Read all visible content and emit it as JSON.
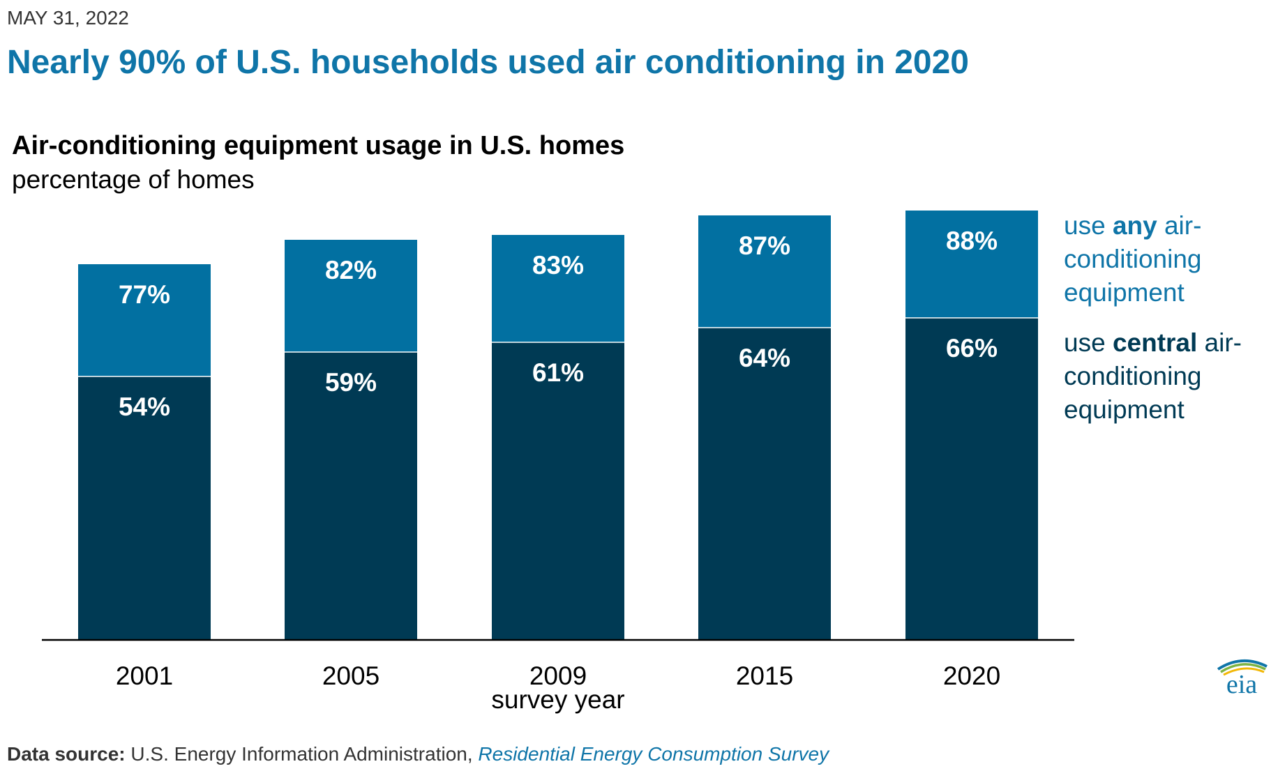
{
  "header": {
    "date": "MAY 31, 2022",
    "headline": "Nearly 90% of U.S. households used air conditioning in 2020"
  },
  "legend": {
    "any": {
      "prefix": "use ",
      "emphasis": "any",
      "suffix": " air-conditioning equipment"
    },
    "central": {
      "prefix": "use ",
      "emphasis": "central",
      "suffix": " air-conditioning equipment"
    }
  },
  "footer": {
    "source_label": "Data source:",
    "source_text": " U.S. Energy Information Administration, ",
    "source_link": "Residential Energy Consumption Survey",
    "logo_text": "eia"
  },
  "colors": {
    "headline": "#0F75A8",
    "any_ac": "#0270A1",
    "central_ac": "#003A54",
    "axis": "#000000"
  },
  "chart_data": {
    "type": "bar",
    "stacked": false,
    "overlapping": true,
    "title": "Air-conditioning equipment usage in U.S. homes",
    "subtitle": "percentage of homes",
    "xlabel": "survey year",
    "ylabel": "",
    "ylim": [
      0,
      100
    ],
    "grid": false,
    "categories": [
      "2001",
      "2005",
      "2009",
      "2015",
      "2020"
    ],
    "series": [
      {
        "name": "use any air-conditioning equipment",
        "key": "any",
        "values": [
          77,
          82,
          83,
          87,
          88
        ],
        "labels": [
          "77%",
          "82%",
          "83%",
          "87%",
          "88%"
        ]
      },
      {
        "name": "use central air-conditioning equipment",
        "key": "central",
        "values": [
          54,
          59,
          61,
          64,
          66
        ],
        "labels": [
          "54%",
          "59%",
          "61%",
          "64%",
          "66%"
        ]
      }
    ]
  }
}
